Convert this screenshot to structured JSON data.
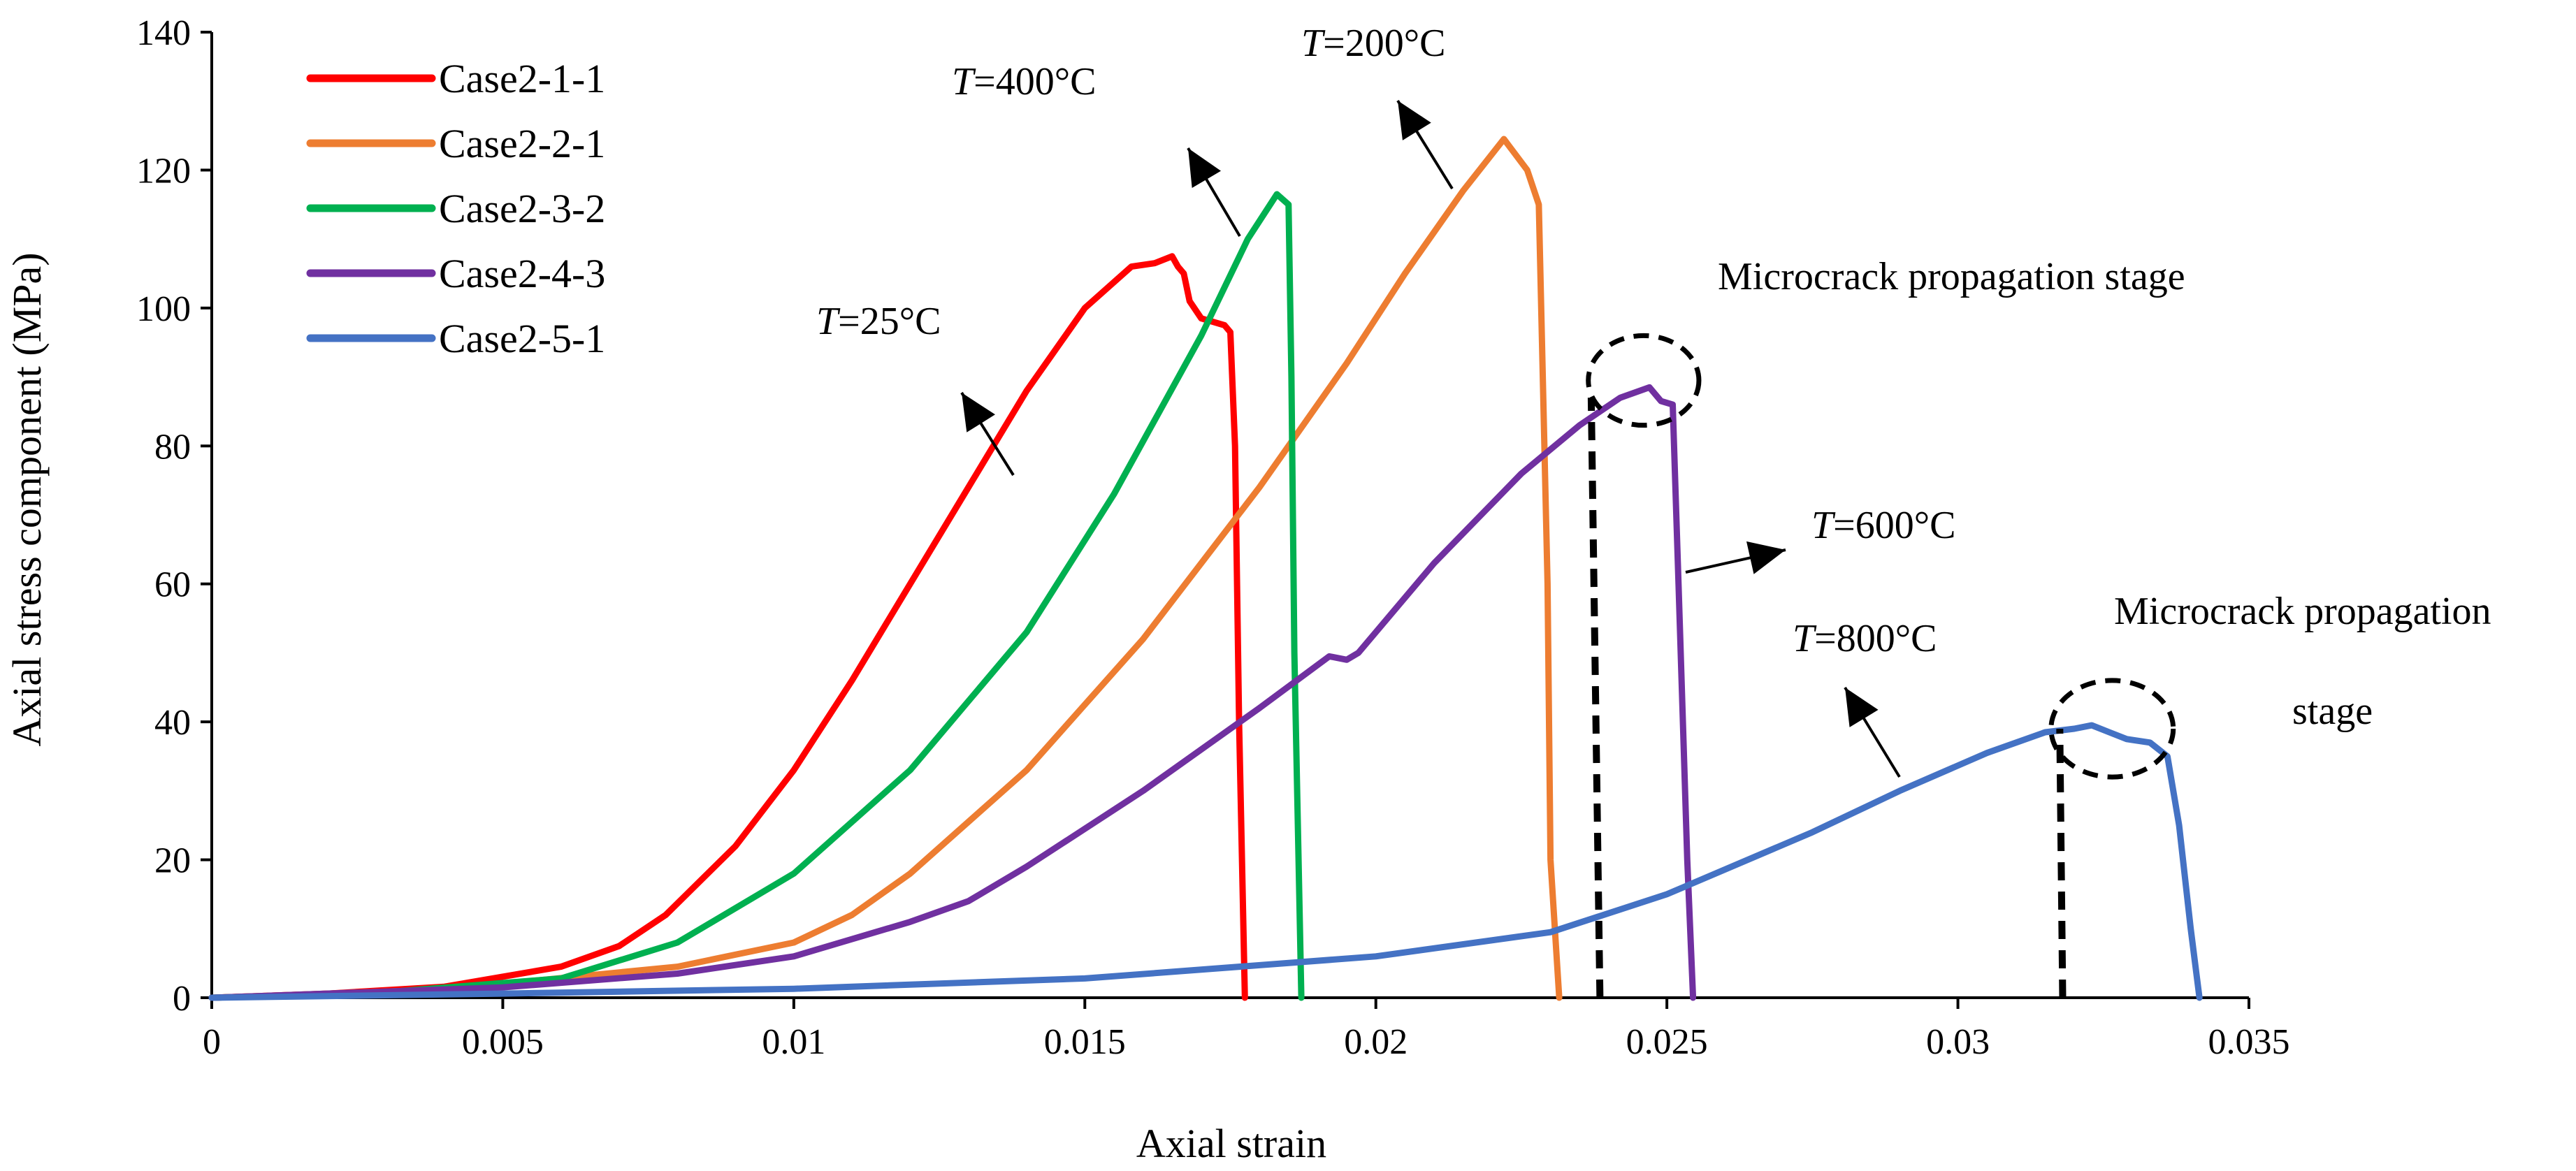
{
  "chart_data": {
    "type": "line",
    "xlabel": "Axial strain",
    "ylabel": "Axial stress component (MPa)",
    "xlim": [
      0,
      0.035
    ],
    "ylim": [
      0,
      140
    ],
    "xticks": [
      0,
      0.005,
      0.01,
      0.015,
      0.02,
      0.025,
      0.03,
      0.035
    ],
    "xtick_labels": [
      "0",
      "0.005",
      "0.01",
      "0.015",
      "0.02",
      "0.025",
      "0.03",
      "0.035"
    ],
    "yticks": [
      0,
      20,
      40,
      60,
      80,
      100,
      120,
      140
    ],
    "ytick_labels": [
      "0",
      "20",
      "40",
      "60",
      "80",
      "100",
      "120",
      "140"
    ],
    "grid": false,
    "legend_position": "top-left",
    "series": [
      {
        "name": "Case2-1-1",
        "color": "#ff0000",
        "x": [
          0,
          0.002,
          0.004,
          0.006,
          0.007,
          0.0078,
          0.009,
          0.01,
          0.011,
          0.012,
          0.013,
          0.014,
          0.015,
          0.0158,
          0.0162,
          0.0165,
          0.0166,
          0.0167,
          0.0168,
          0.017,
          0.0172,
          0.0174,
          0.0175,
          0.01758,
          0.01765,
          0.01775
        ],
        "y": [
          0,
          0.6,
          1.6,
          4.5,
          7.5,
          12,
          22,
          33,
          46,
          60,
          74,
          88,
          100,
          106,
          106.5,
          107.5,
          106,
          105,
          101,
          98.5,
          98,
          97.5,
          96.5,
          80,
          40,
          0
        ]
      },
      {
        "name": "Case2-2-1",
        "color": "#ed7d31",
        "x": [
          0,
          0.004,
          0.008,
          0.01,
          0.011,
          0.012,
          0.014,
          0.016,
          0.018,
          0.0195,
          0.0205,
          0.0215,
          0.0222,
          0.0226,
          0.0228,
          0.02295,
          0.023,
          0.02315
        ],
        "y": [
          0,
          1.2,
          4.5,
          8,
          12,
          18,
          33,
          52,
          74,
          92,
          105,
          117,
          124.5,
          120,
          115,
          60,
          20,
          0
        ]
      },
      {
        "name": "Case2-3-2",
        "color": "#00b050",
        "x": [
          0,
          0.003,
          0.006,
          0.008,
          0.01,
          0.012,
          0.014,
          0.0155,
          0.017,
          0.0178,
          0.0183,
          0.0185,
          0.01855,
          0.0186,
          0.01872
        ],
        "y": [
          0,
          0.8,
          2.8,
          8,
          18,
          33,
          53,
          73,
          96,
          110,
          116.5,
          115,
          90,
          50,
          0
        ]
      },
      {
        "name": "Case2-4-3",
        "color": "#7030a0",
        "x": [
          0,
          0.005,
          0.008,
          0.01,
          0.012,
          0.013,
          0.014,
          0.016,
          0.018,
          0.0192,
          0.0195,
          0.0197,
          0.021,
          0.0225,
          0.0235,
          0.0242,
          0.0247,
          0.0249,
          0.0251,
          0.0252,
          0.02535,
          0.02545
        ],
        "y": [
          0,
          1.5,
          3.5,
          6,
          11,
          14,
          19,
          30,
          42,
          49.5,
          49,
          50,
          63,
          76,
          83,
          87,
          88.5,
          86.5,
          86,
          60,
          20,
          0
        ]
      },
      {
        "name": "Case2-5-1",
        "color": "#4472c4",
        "x": [
          0,
          0.005,
          0.01,
          0.015,
          0.02,
          0.023,
          0.025,
          0.0275,
          0.029,
          0.0305,
          0.0315,
          0.032,
          0.0323,
          0.0326,
          0.0329,
          0.0333,
          0.0336,
          0.0338,
          0.034,
          0.03415
        ],
        "y": [
          0,
          0.6,
          1.3,
          2.8,
          6,
          9.5,
          15,
          24,
          30,
          35.5,
          38.5,
          39,
          39.5,
          38.5,
          37.5,
          37,
          35,
          25,
          10,
          0
        ]
      }
    ],
    "annotations": {
      "t25": "=25°C",
      "t400": "=400°C",
      "t200": "=200°C",
      "t600": "=600°C",
      "t800": "=800°C",
      "t_symbol": "T",
      "micro1": "Microcrack propagation stage",
      "micro2_line1": "Microcrack propagation",
      "micro2_line2": "stage"
    },
    "markers": {
      "dashed_line_1": {
        "x": [
          0.02385,
          0.0237
        ],
        "y": [
          0,
          87
        ]
      },
      "dashed_line_2": {
        "x": [
          0.0318,
          0.03175
        ],
        "y": [
          0,
          39
        ]
      },
      "ellipse_1": {
        "cx": 0.0246,
        "cy": 89.5,
        "rx": 0.00095,
        "ry": 6.5
      },
      "ellipse_2": {
        "cx": 0.03265,
        "cy": 39,
        "rx": 0.00105,
        "ry": 7
      }
    }
  }
}
